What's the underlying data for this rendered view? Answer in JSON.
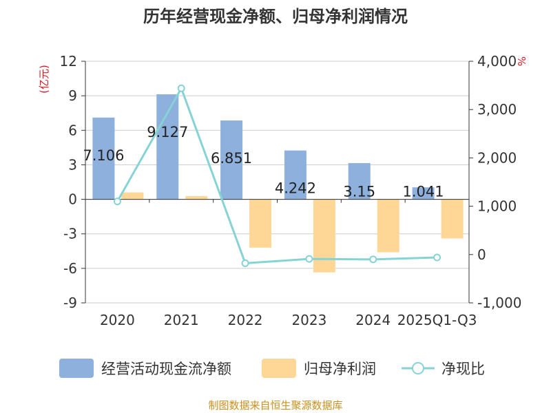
{
  "title": "历年经营现金净额、归母净利润情况",
  "source": "制图数据来自恒生聚源数据库",
  "colors": {
    "bar1": "#8eb0dd",
    "bar2": "#fed797",
    "line": "#86d3d6",
    "unit": "#e0141e",
    "source": "#c8901e"
  },
  "chart_data": {
    "type": "bar",
    "categories": [
      "2020",
      "2021",
      "2022",
      "2023",
      "2024",
      "2025Q1-Q3"
    ],
    "series": [
      {
        "name": "经营活动现金流净额",
        "type": "bar",
        "axis": "left",
        "values": [
          7.106,
          9.127,
          6.851,
          4.242,
          3.15,
          1.041
        ]
      },
      {
        "name": "归母净利润",
        "type": "bar",
        "axis": "left",
        "values": [
          0.6,
          0.28,
          -4.2,
          -6.35,
          -4.6,
          -3.4
        ]
      },
      {
        "name": "净现比",
        "type": "line",
        "axis": "right",
        "values": [
          1100,
          3440,
          -180,
          -90,
          -100,
          -60
        ]
      }
    ],
    "data_labels": [
      "7.106",
      "9.127",
      "6.851",
      "4.242",
      "3.15",
      "1.041"
    ],
    "y_left": {
      "unit": "(亿元)",
      "min": -9,
      "max": 12,
      "ticks": [
        "12",
        "9",
        "6",
        "3",
        "0",
        "-3",
        "-6",
        "-9"
      ]
    },
    "y_right": {
      "unit": "%",
      "min": -1000,
      "max": 4000,
      "ticks": [
        "4,000",
        "3,000",
        "2,000",
        "1,000",
        "0",
        "-1,000"
      ]
    },
    "grid": true,
    "legend_position": "bottom"
  }
}
